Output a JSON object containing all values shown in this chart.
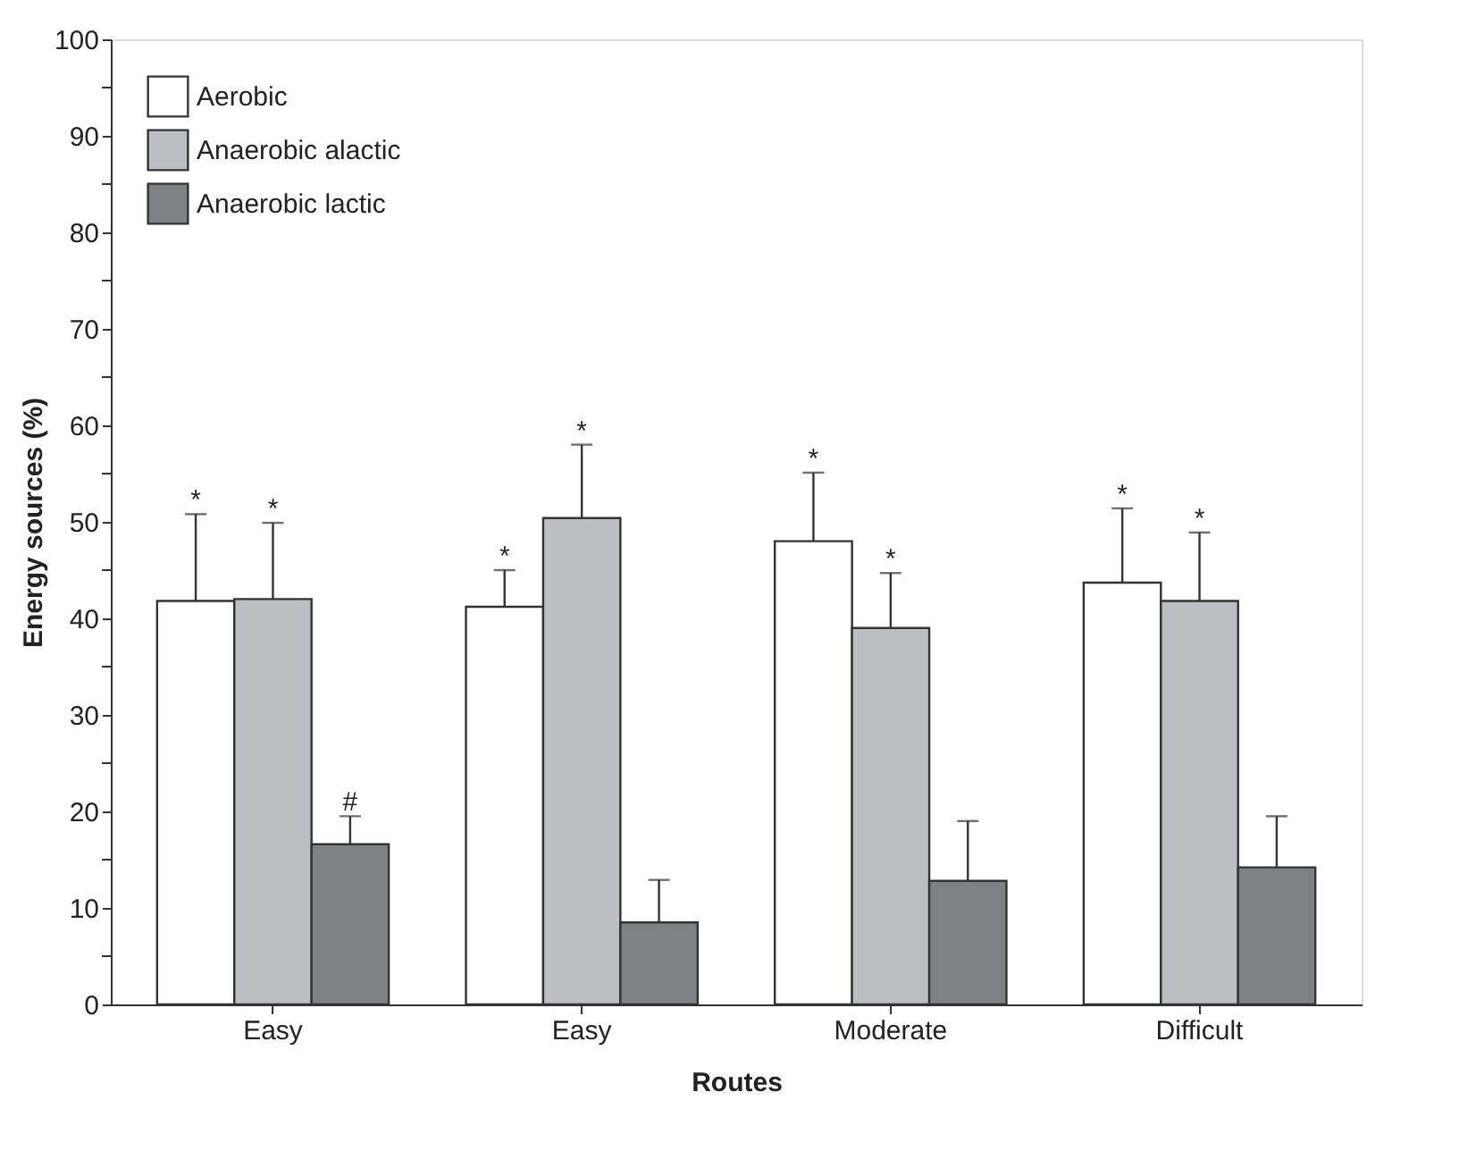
{
  "chart_data": {
    "type": "bar",
    "xlabel": "Routes",
    "ylabel": "Energy sources (%)",
    "categories": [
      "Easy",
      "Easy",
      "Moderate",
      "Difficult"
    ],
    "series": [
      {
        "name": "Aerobic",
        "color": "#ffffff",
        "values": [
          41.8,
          41.2,
          48.0,
          43.7
        ],
        "errors": [
          [
            41.8,
            50.8
          ],
          [
            41.2,
            45.0
          ],
          [
            48.0,
            55.1
          ],
          [
            43.7,
            51.4
          ]
        ]
      },
      {
        "name": "Anaerobic alactic",
        "color": "#bdbec2",
        "values": [
          42.0,
          50.4,
          39.0,
          41.8
        ],
        "errors": [
          [
            42.0,
            49.9
          ],
          [
            50.4,
            58.0
          ],
          [
            39.0,
            44.7
          ],
          [
            41.8,
            48.9
          ]
        ]
      },
      {
        "name": "Anaerobic lactic",
        "color": "#808184",
        "values": [
          16.6,
          8.5,
          12.8,
          14.2
        ],
        "errors": [
          [
            16.6,
            19.5
          ],
          [
            8.5,
            12.9
          ],
          [
            12.8,
            19.0
          ],
          [
            14.2,
            19.5
          ]
        ]
      }
    ],
    "ylim": [
      0,
      100
    ],
    "yticks": [
      0,
      {
        "value": 5,
        "label": null
      },
      10,
      {
        "value": 15,
        "label": null
      },
      20,
      {
        "value": 25,
        "label": null
      },
      30,
      {
        "value": 35,
        "label": null
      },
      40,
      {
        "value": 45,
        "label": null
      },
      50,
      {
        "value": 55,
        "label": null
      },
      60,
      {
        "value": 65,
        "label": null
      },
      70,
      {
        "value": 75,
        "label": null
      },
      80,
      {
        "value": 85,
        "label": null
      },
      90,
      {
        "value": 95,
        "label": null
      },
      100
    ],
    "legend": "top left",
    "annotations": [
      "*",
      "*",
      "#",
      "*",
      "*",
      "*",
      "*",
      "*",
      "*"
    ]
  }
}
